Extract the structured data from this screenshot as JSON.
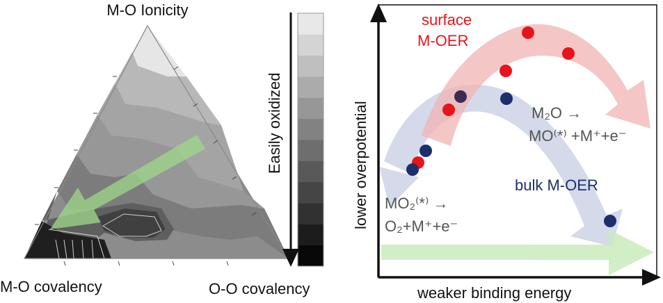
{
  "ternary": {
    "top_label": "M-O Ionicity",
    "left_label": "M-O covalency",
    "right_label": "O-O covalency",
    "colorbar_label": "Easily oxidized",
    "colorbar_levels": 12,
    "arrow_color": "#9fd88a"
  },
  "volcano": {
    "x_label": "weaker binding energy",
    "y_label": "lower overpotential",
    "surface_label_line1": "surface",
    "surface_label_line2": "M-OER",
    "bulk_label": "bulk M-OER",
    "reaction_left_line1": "MO₂⁽*⁾ →",
    "reaction_left_line2": "O₂+M⁺+e⁻",
    "reaction_right_line1": "M₂O →",
    "reaction_right_line2": "MO⁽*⁾ +M⁺+e⁻",
    "surface_color": "#e8141c",
    "bulk_color": "#1c2f6b",
    "surface_band_color": "#f2b3b3",
    "bulk_band_color": "#cdd3e6",
    "bottom_arrow_color": "#c9ecbd"
  }
}
